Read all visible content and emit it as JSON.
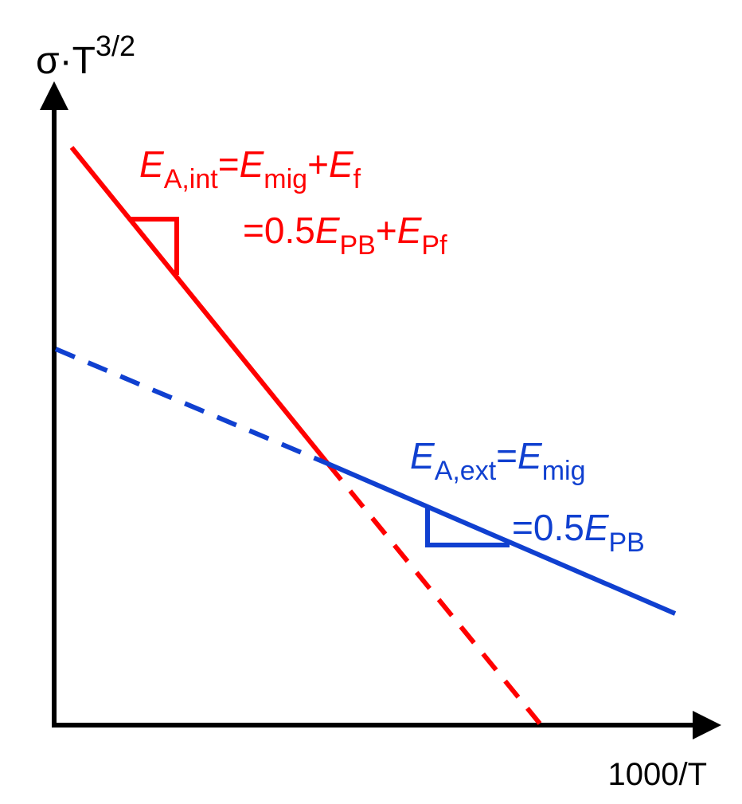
{
  "axes": {
    "y_label": {
      "base": "σ·T",
      "sup": "3/2"
    },
    "x_label": "1000/T"
  },
  "intrinsic_label": {
    "line1": [
      "E",
      "A,int",
      "=",
      "E",
      "mig",
      "+",
      "E",
      "f"
    ],
    "line2": [
      "=0.5",
      "E",
      "PB",
      "+",
      "E",
      "Pf"
    ]
  },
  "extrinsic_label": {
    "line1": [
      "E",
      "A,ext",
      "=",
      "E",
      "mig"
    ],
    "line2": [
      "=0.5",
      "E",
      "PB"
    ]
  }
}
